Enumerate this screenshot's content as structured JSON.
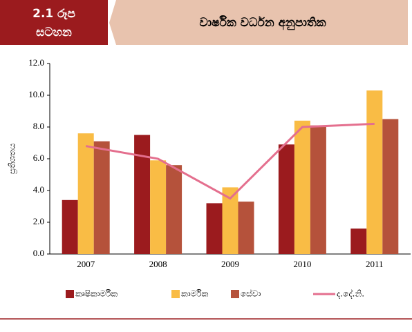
{
  "header": {
    "figure_number": "2.1 රූප",
    "figure_word": "සටහන",
    "title": "වාර්ෂික වර්ධන අනුපාතික"
  },
  "chart_data": {
    "type": "bar",
    "ylabel": "ප්‍රතිශතය",
    "categories": [
      "2007",
      "2008",
      "2009",
      "2010",
      "2011"
    ],
    "ylim": [
      0,
      12
    ],
    "yticks": [
      {
        "value": 0,
        "label": "0.0"
      },
      {
        "value": 2,
        "label": "2.0"
      },
      {
        "value": 4,
        "label": "4.0"
      },
      {
        "value": 6,
        "label": "6.0"
      },
      {
        "value": 8,
        "label": "8.0"
      },
      {
        "value": 10,
        "label": "10.0"
      },
      {
        "value": 12,
        "label": "12.0"
      }
    ],
    "series": [
      {
        "name": "කෘෂිකාර්මික",
        "color": "#9b1b1e",
        "values": [
          3.4,
          7.5,
          3.2,
          6.9,
          1.6
        ]
      },
      {
        "name": "කාර්මික",
        "color": "#f9bc45",
        "values": [
          7.6,
          5.9,
          4.2,
          8.4,
          10.3
        ]
      },
      {
        "name": "සේවා",
        "color": "#b5523b",
        "values": [
          7.1,
          5.6,
          3.3,
          8.1,
          8.5
        ]
      },
      {
        "name": "ද.දේ.නි.",
        "color": "#e46f8e",
        "type": "line",
        "values": [
          6.8,
          6.0,
          3.5,
          8.0,
          8.2
        ]
      }
    ]
  }
}
